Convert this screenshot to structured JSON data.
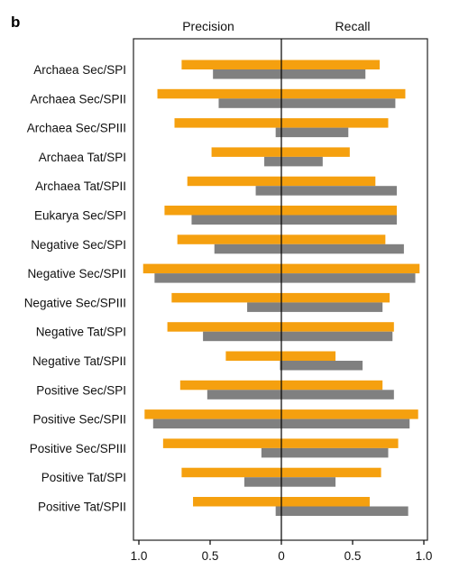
{
  "chart_data": {
    "panel_label": "b",
    "type": "bar",
    "orientation": "horizontal-diverging",
    "panel_titles": [
      "Precision",
      "Recall"
    ],
    "categories": [
      "Archaea Sec/SPI",
      "Archaea Sec/SPII",
      "Archaea Sec/SPIII",
      "Archaea Tat/SPI",
      "Archaea Tat/SPII",
      "Eukarya Sec/SPI",
      "Negative Sec/SPI",
      "Negative Sec/SPII",
      "Negative Sec/SPIII",
      "Negative Tat/SPI",
      "Negative Tat/SPII",
      "Positive Sec/SPI",
      "Positive Sec/SPII",
      "Positive Sec/SPIII",
      "Positive Tat/SPI",
      "Positive Tat/SPII"
    ],
    "series": [
      {
        "color": "#f5a00f",
        "precision": [
          0.7,
          0.87,
          0.75,
          0.49,
          0.66,
          0.82,
          0.73,
          0.97,
          0.77,
          0.8,
          0.39,
          0.71,
          0.96,
          0.83,
          0.7,
          0.62
        ],
        "recall": [
          0.69,
          0.87,
          0.75,
          0.48,
          0.66,
          0.81,
          0.73,
          0.97,
          0.76,
          0.79,
          0.38,
          0.71,
          0.96,
          0.82,
          0.7,
          0.62
        ]
      },
      {
        "color": "#808080",
        "precision": [
          0.48,
          0.44,
          0.04,
          0.12,
          0.18,
          0.63,
          0.47,
          0.89,
          0.24,
          0.55,
          0.01,
          0.52,
          0.9,
          0.14,
          0.26,
          0.04
        ],
        "recall": [
          0.59,
          0.8,
          0.47,
          0.29,
          0.81,
          0.81,
          0.86,
          0.94,
          0.71,
          0.78,
          0.57,
          0.79,
          0.9,
          0.75,
          0.38,
          0.89
        ]
      }
    ],
    "xticks_left": [
      "1.0",
      "0.5",
      "0"
    ],
    "xticks_right": [
      "0.5",
      "1.0"
    ],
    "xlim": [
      0,
      1
    ],
    "grid": false,
    "legend": "none"
  }
}
